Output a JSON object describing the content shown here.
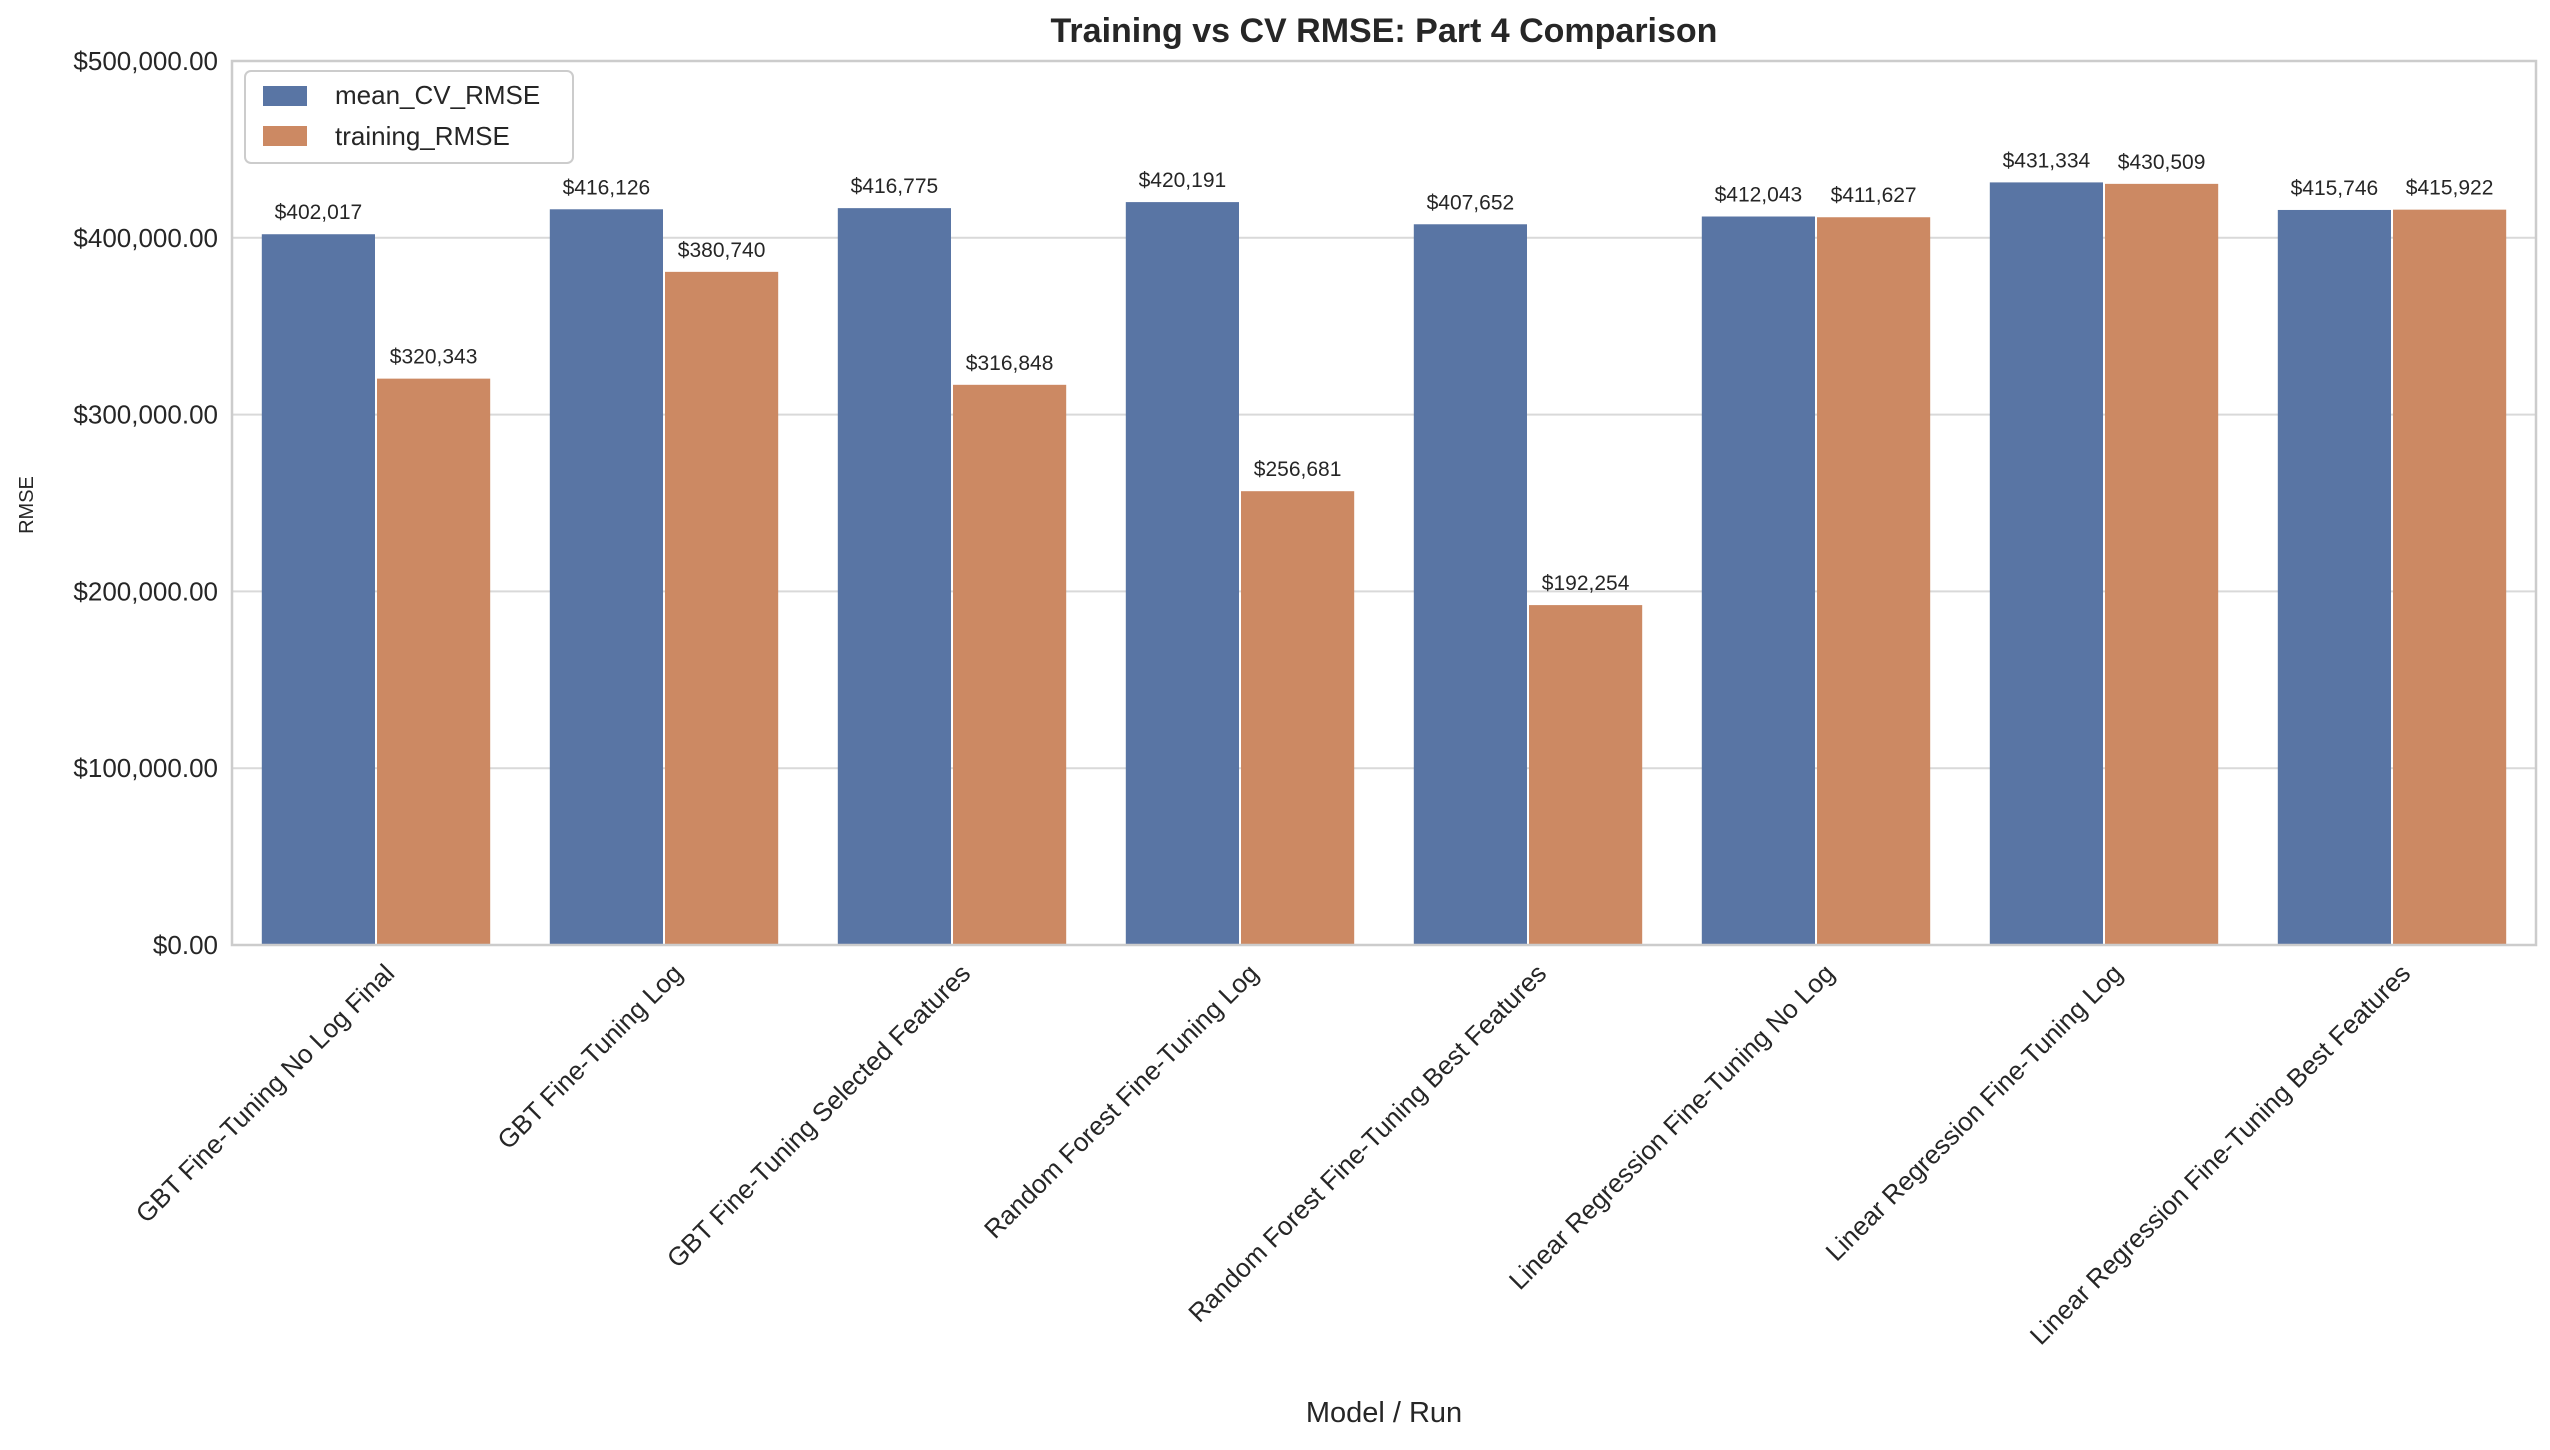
{
  "colors": {
    "mean_cv": "#5975a4",
    "training": "#cc8963",
    "grid": "#d9d9d9",
    "axes": "#cccccc",
    "text": "#262626"
  },
  "chart_data": {
    "type": "bar",
    "title": "Training vs CV RMSE: Part 4 Comparison",
    "xlabel": "Model / Run",
    "ylabel": "RMSE",
    "ylim": [
      0,
      500000
    ],
    "yticks": [
      0,
      100000,
      200000,
      300000,
      400000,
      500000
    ],
    "ytick_labels": [
      "$0.00",
      "$100,000.00",
      "$200,000.00",
      "$300,000.00",
      "$400,000.00",
      "$500,000.00"
    ],
    "grid": true,
    "legend_position": "top-left",
    "categories": [
      "GBT Fine-Tuning No Log Final",
      "GBT Fine-Tuning Log",
      "GBT Fine-Tuning Selected Features",
      "Random Forest Fine-Tuning Log",
      "Random Forest Fine-Tuning Best Features",
      "Linear Regression Fine-Tuning No Log",
      "Linear Regression Fine-Tuning Log",
      "Linear Regression Fine-Tuning Best Features"
    ],
    "series": [
      {
        "name": "mean_CV_RMSE",
        "color": "#5975a4",
        "values": [
          402017,
          416126,
          416775,
          420191,
          407652,
          412043,
          431334,
          415746
        ],
        "labels": [
          "$402,017",
          "$416,126",
          "$416,775",
          "$420,191",
          "$407,652",
          "$412,043",
          "$431,334",
          "$415,746"
        ]
      },
      {
        "name": "training_RMSE",
        "color": "#cc8963",
        "values": [
          320343,
          380740,
          316848,
          256681,
          192254,
          411627,
          430509,
          415922
        ],
        "labels": [
          "$320,343",
          "$380,740",
          "$316,848",
          "$256,681",
          "$192,254",
          "$411,627",
          "$430,509",
          "$415,922"
        ]
      }
    ]
  }
}
